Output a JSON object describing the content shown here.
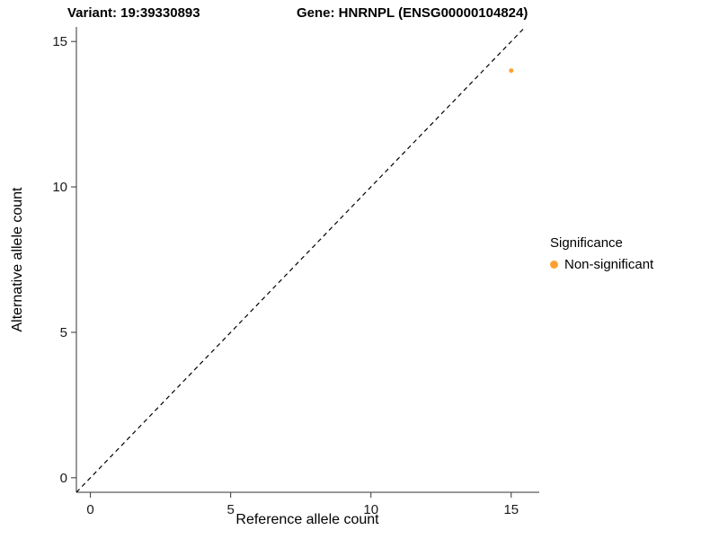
{
  "chart_data": {
    "type": "scatter",
    "title_left": "Variant: 19:39330893",
    "title_right": "Gene: HNRNPL (ENSG00000104824)",
    "xlabel": "Reference allele count",
    "ylabel": "Alternative allele count",
    "xlim": [
      -0.5,
      16
    ],
    "ylim": [
      -0.5,
      15.5
    ],
    "xticks": [
      0,
      5,
      10,
      15
    ],
    "yticks": [
      0,
      5,
      10,
      15
    ],
    "grid": false,
    "reference_line": {
      "type": "identity",
      "style": "dashed",
      "color": "#000000"
    },
    "series": [
      {
        "name": "Non-significant",
        "color": "#FFA033",
        "points": [
          [
            15,
            14
          ]
        ]
      }
    ],
    "legend": {
      "title": "Significance",
      "position": "right",
      "entries": [
        {
          "label": "Non-significant",
          "color": "#FFA033"
        }
      ]
    },
    "axis_color": "#333333",
    "tick_label_color": "#1a1a1a"
  }
}
